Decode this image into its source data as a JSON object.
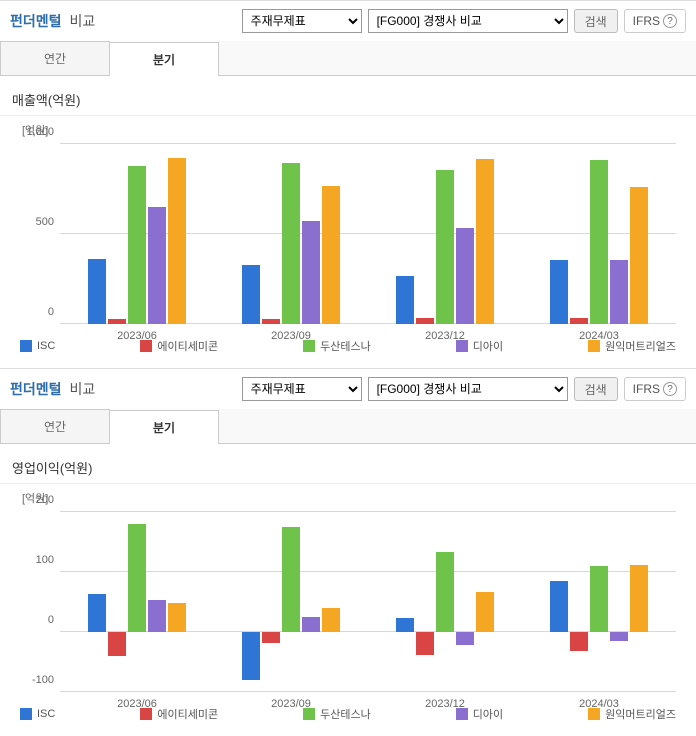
{
  "panels": [
    {
      "title_main": "펀더멘털",
      "title_sub": "비교",
      "select1": "주재무제표",
      "select2": "[FG000] 경쟁사 비교",
      "search_label": "검색",
      "ifrs_label": "IFRS",
      "tab_annual": "연간",
      "tab_quarter": "분기",
      "chart": {
        "title": "매출액(억원)",
        "ylabel": "[억원]",
        "ylim": [
          0,
          1000
        ],
        "yticks": [
          0,
          500,
          1000
        ],
        "categories": [
          "2023/06",
          "2023/09",
          "2023/12",
          "2024/03"
        ],
        "series": [
          {
            "name": "ISC",
            "color": "#2e75d6",
            "values": [
              360,
              330,
              265,
              355
            ]
          },
          {
            "name": "에이티세미콘",
            "color": "#d94545",
            "values": [
              30,
              28,
              35,
              32
            ]
          },
          {
            "name": "두산테스나",
            "color": "#6fc24a",
            "values": [
              880,
              895,
              855,
              910
            ]
          },
          {
            "name": "디아이",
            "color": "#8a6fd1",
            "values": [
              650,
              575,
              535,
              355
            ]
          },
          {
            "name": "원익머트리얼즈",
            "color": "#f5a623",
            "values": [
              920,
              765,
              915,
              760
            ]
          }
        ],
        "background_color": "#ffffff",
        "grid_color": "#d8d8d8",
        "label_fontsize": 11
      }
    },
    {
      "title_main": "펀더멘털",
      "title_sub": "비교",
      "select1": "주재무제표",
      "select2": "[FG000] 경쟁사 비교",
      "search_label": "검색",
      "ifrs_label": "IFRS",
      "tab_annual": "연간",
      "tab_quarter": "분기",
      "chart": {
        "title": "영업이익(억원)",
        "ylabel": "[억원]",
        "ylim": [
          -100,
          200
        ],
        "yticks": [
          -100,
          0,
          100,
          200
        ],
        "categories": [
          "2023/06",
          "2023/09",
          "2023/12",
          "2024/03"
        ],
        "series": [
          {
            "name": "ISC",
            "color": "#2e75d6",
            "values": [
              63,
              -80,
              23,
              85
            ]
          },
          {
            "name": "에이티세미콘",
            "color": "#d94545",
            "values": [
              -40,
              -18,
              -38,
              -32
            ]
          },
          {
            "name": "두산테스나",
            "color": "#6fc24a",
            "values": [
              180,
              175,
              133,
              110
            ]
          },
          {
            "name": "디아이",
            "color": "#8a6fd1",
            "values": [
              53,
              25,
              -22,
              -15
            ]
          },
          {
            "name": "원익머트리얼즈",
            "color": "#f5a623",
            "values": [
              48,
              40,
              67,
              112
            ]
          }
        ],
        "background_color": "#ffffff",
        "grid_color": "#d8d8d8",
        "label_fontsize": 11
      }
    }
  ]
}
